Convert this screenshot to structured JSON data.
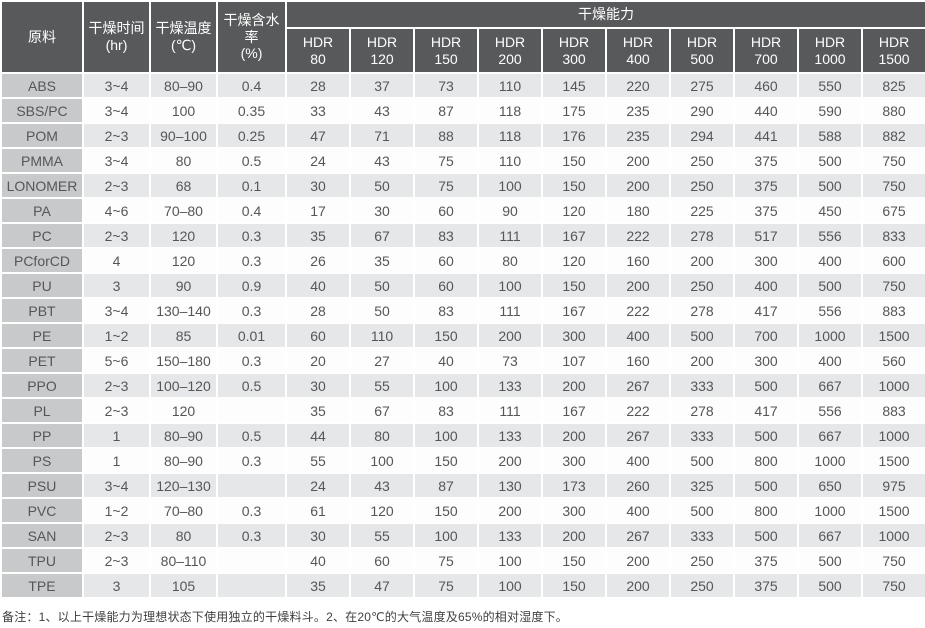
{
  "chart_data": {
    "type": "table",
    "capacity_group_label": "干燥能力",
    "hdr_label": "HDR",
    "hdr_sizes": [
      "80",
      "120",
      "150",
      "200",
      "300",
      "400",
      "500",
      "700",
      "1000",
      "1500"
    ],
    "columns_left": [
      {
        "label": "原料",
        "unit": ""
      },
      {
        "label": "干燥时间",
        "unit": "(hr)"
      },
      {
        "label": "干燥温度",
        "unit": "(℃)"
      },
      {
        "label": "干燥含水率",
        "unit": "(%)"
      }
    ],
    "rows": [
      {
        "material": "ABS",
        "time_hr": "3~4",
        "temp_c": "80–90",
        "moisture_pct": "0.4",
        "capacity": [
          28,
          37,
          73,
          110,
          145,
          220,
          275,
          460,
          550,
          825
        ]
      },
      {
        "material": "SBS/PC",
        "time_hr": "3~4",
        "temp_c": "100",
        "moisture_pct": "0.35",
        "capacity": [
          33,
          43,
          87,
          118,
          175,
          235,
          290,
          440,
          590,
          880
        ]
      },
      {
        "material": "POM",
        "time_hr": "2~3",
        "temp_c": "90–100",
        "moisture_pct": "0.25",
        "capacity": [
          47,
          71,
          88,
          118,
          176,
          235,
          294,
          441,
          588,
          882
        ]
      },
      {
        "material": "PMMA",
        "time_hr": "3~4",
        "temp_c": "80",
        "moisture_pct": "0.5",
        "capacity": [
          24,
          43,
          75,
          110,
          150,
          200,
          250,
          375,
          500,
          750
        ]
      },
      {
        "material": "LONOMER",
        "time_hr": "2~3",
        "temp_c": "68",
        "moisture_pct": "0.1",
        "capacity": [
          30,
          50,
          75,
          100,
          150,
          200,
          250,
          375,
          500,
          750
        ]
      },
      {
        "material": "PA",
        "time_hr": "4~6",
        "temp_c": "70–80",
        "moisture_pct": "0.4",
        "capacity": [
          17,
          30,
          60,
          90,
          120,
          180,
          225,
          375,
          450,
          675
        ]
      },
      {
        "material": "PC",
        "time_hr": "2~3",
        "temp_c": "120",
        "moisture_pct": "0.3",
        "capacity": [
          35,
          67,
          83,
          111,
          167,
          222,
          278,
          517,
          556,
          833
        ]
      },
      {
        "material": "PCforCD",
        "time_hr": "4",
        "temp_c": "120",
        "moisture_pct": "0.3",
        "capacity": [
          26,
          35,
          60,
          80,
          120,
          160,
          200,
          300,
          400,
          600
        ]
      },
      {
        "material": "PU",
        "time_hr": "3",
        "temp_c": "90",
        "moisture_pct": "0.9",
        "capacity": [
          40,
          50,
          60,
          100,
          150,
          200,
          250,
          400,
          500,
          750
        ]
      },
      {
        "material": "PBT",
        "time_hr": "3~4",
        "temp_c": "130–140",
        "moisture_pct": "0.3",
        "capacity": [
          28,
          50,
          83,
          111,
          167,
          222,
          278,
          417,
          556,
          883
        ]
      },
      {
        "material": "PE",
        "time_hr": "1~2",
        "temp_c": "85",
        "moisture_pct": "0.01",
        "capacity": [
          60,
          110,
          150,
          200,
          300,
          400,
          500,
          700,
          1000,
          1500
        ]
      },
      {
        "material": "PET",
        "time_hr": "5~6",
        "temp_c": "150–180",
        "moisture_pct": "0.3",
        "capacity": [
          20,
          27,
          40,
          73,
          107,
          160,
          200,
          300,
          400,
          560
        ]
      },
      {
        "material": "PPO",
        "time_hr": "2~3",
        "temp_c": "100–120",
        "moisture_pct": "0.5",
        "capacity": [
          30,
          55,
          100,
          133,
          200,
          267,
          333,
          500,
          667,
          1000
        ]
      },
      {
        "material": "PL",
        "time_hr": "2~3",
        "temp_c": "120",
        "moisture_pct": "",
        "capacity": [
          35,
          67,
          83,
          111,
          167,
          222,
          278,
          417,
          556,
          883
        ]
      },
      {
        "material": "PP",
        "time_hr": "1",
        "temp_c": "80–90",
        "moisture_pct": "0.5",
        "capacity": [
          44,
          80,
          100,
          133,
          200,
          267,
          333,
          500,
          667,
          1000
        ]
      },
      {
        "material": "PS",
        "time_hr": "1",
        "temp_c": "80–90",
        "moisture_pct": "0.3",
        "capacity": [
          55,
          100,
          150,
          200,
          300,
          400,
          500,
          800,
          1000,
          1500
        ]
      },
      {
        "material": "PSU",
        "time_hr": "3~4",
        "temp_c": "120–130",
        "moisture_pct": "",
        "capacity": [
          24,
          43,
          87,
          130,
          173,
          260,
          325,
          500,
          650,
          975
        ]
      },
      {
        "material": "PVC",
        "time_hr": "1~2",
        "temp_c": "70–80",
        "moisture_pct": "0.3",
        "capacity": [
          61,
          120,
          150,
          200,
          300,
          400,
          500,
          800,
          1000,
          1500
        ]
      },
      {
        "material": "SAN",
        "time_hr": "2~3",
        "temp_c": "80",
        "moisture_pct": "0.3",
        "capacity": [
          30,
          55,
          100,
          133,
          200,
          267,
          333,
          500,
          667,
          1000
        ]
      },
      {
        "material": "TPU",
        "time_hr": "2~3",
        "temp_c": "80–110",
        "moisture_pct": "",
        "capacity": [
          40,
          60,
          75,
          100,
          150,
          200,
          250,
          375,
          500,
          750
        ]
      },
      {
        "material": "TPE",
        "time_hr": "3",
        "temp_c": "105",
        "moisture_pct": "",
        "capacity": [
          35,
          47,
          75,
          100,
          150,
          200,
          250,
          375,
          500,
          750
        ]
      }
    ]
  },
  "footer": {
    "note": "备注：1、以上干燥能力为理想状态下使用独立的干燥料斗。2、在20℃的大气温度及65%的相对湿度下。"
  },
  "colors": {
    "header_bg": "#58595b",
    "header_text": "#ffffff",
    "material_col_bg": "#c8c9cb",
    "row_odd_bg": "#e6e7e8",
    "row_even_bg": "#fdfdfd",
    "cell_text": "#565657",
    "grid": "#ffffff"
  }
}
